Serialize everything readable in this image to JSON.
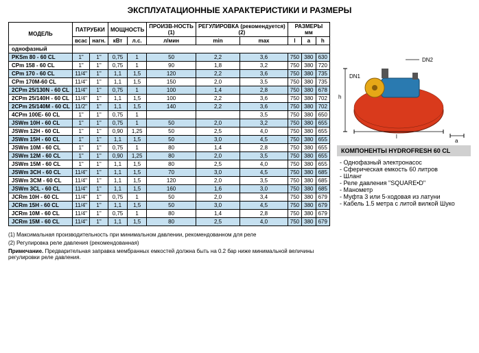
{
  "title": "ЭКСПЛУАТАЦИОННЫЕ ХАРАКТЕРИСТИКИ И РАЗМЕРЫ",
  "headers": {
    "model": "МОДЕЛЬ",
    "nozzles": "ПАТРУБКИ",
    "power": "МОЩНОСТЬ",
    "output": "ПРОИЗВ-НОСТЬ",
    "adjust": "РЕГУЛИРОВКА (рекомендуется)",
    "dims": "РАЗМЕРЫ",
    "phase": "однофазный",
    "suction": "всас",
    "delivery": "нагн.",
    "kw": "кВт",
    "hp": "л.с.",
    "lmin": "л/мин",
    "min": "min",
    "max": "max",
    "l": "l",
    "a": "a",
    "h": "h",
    "note1": "(1)",
    "note2": "(2)",
    "mm": "мм"
  },
  "rows": [
    {
      "m": "PKSm 80 - 60 CL",
      "s": "1\"",
      "d": "1\"",
      "kw": "0,75",
      "hp": "1",
      "lm": "50",
      "mn": "2,2",
      "mx": "3,6",
      "l": "750",
      "a": "380",
      "h": "630"
    },
    {
      "m": "CPm 158 - 60 CL",
      "s": "1\"",
      "d": "1\"",
      "kw": "0,75",
      "hp": "1",
      "lm": "90",
      "mn": "1,8",
      "mx": "3,2",
      "l": "750",
      "a": "380",
      "h": "720"
    },
    {
      "m": "CPm 170 - 60 CL",
      "s": "11/4\"",
      "d": "1\"",
      "kw": "1,1",
      "hp": "1,5",
      "lm": "120",
      "mn": "2,2",
      "mx": "3,6",
      "l": "750",
      "a": "380",
      "h": "735"
    },
    {
      "m": "CPm 170M-60 CL",
      "s": "11/4\"",
      "d": "1\"",
      "kw": "1,1",
      "hp": "1,5",
      "lm": "150",
      "mn": "2,0",
      "mx": "3,5",
      "l": "750",
      "a": "380",
      "h": "735"
    },
    {
      "m": "2CPm 25/130N - 60 CL",
      "s": "11/4\"",
      "d": "1\"",
      "kw": "0,75",
      "hp": "1",
      "lm": "100",
      "mn": "1,4",
      "mx": "2,8",
      "l": "750",
      "a": "380",
      "h": "678"
    },
    {
      "m": "2CPm 25/140H - 60 CL",
      "s": "11/4\"",
      "d": "1\"",
      "kw": "1,1",
      "hp": "1,5",
      "lm": "100",
      "mn": "2,2",
      "mx": "3,6",
      "l": "750",
      "a": "380",
      "h": "702"
    },
    {
      "m": "2CPm 25/140M - 60 CL",
      "s": "11/2\"",
      "d": "1\"",
      "kw": "1,1",
      "hp": "1,5",
      "lm": "140",
      "mn": "2,2",
      "mx": "3,6",
      "l": "750",
      "a": "380",
      "h": "702"
    },
    {
      "m": "4CPm 100E- 60 CL",
      "s": "1\"",
      "d": "1\"",
      "kw": "0,75",
      "hp": "1",
      "lm": "",
      "mn": "",
      "mx": "3,5",
      "l": "750",
      "a": "380",
      "h": "650"
    },
    {
      "m": "JSWm 10H - 60 CL",
      "s": "1\"",
      "d": "1\"",
      "kw": "0,75",
      "hp": "1",
      "lm": "50",
      "mn": "2,0",
      "mx": "3,2",
      "l": "750",
      "a": "380",
      "h": "655"
    },
    {
      "m": "JSWm 12H - 60 CL",
      "s": "1\"",
      "d": "1\"",
      "kw": "0,90",
      "hp": "1,25",
      "lm": "50",
      "mn": "2,5",
      "mx": "4,0",
      "l": "750",
      "a": "380",
      "h": "655"
    },
    {
      "m": "JSWm 15H - 60 CL",
      "s": "1\"",
      "d": "1\"",
      "kw": "1,1",
      "hp": "1,5",
      "lm": "50",
      "mn": "3,0",
      "mx": "4,5",
      "l": "750",
      "a": "380",
      "h": "655"
    },
    {
      "m": "JSWm 10M - 60 CL",
      "s": "1\"",
      "d": "1\"",
      "kw": "0,75",
      "hp": "1",
      "lm": "80",
      "mn": "1,4",
      "mx": "2,8",
      "l": "750",
      "a": "380",
      "h": "655"
    },
    {
      "m": "JSWm 12M - 60 CL",
      "s": "1\"",
      "d": "1\"",
      "kw": "0,90",
      "hp": "1,25",
      "lm": "80",
      "mn": "2,0",
      "mx": "3,5",
      "l": "750",
      "a": "380",
      "h": "655"
    },
    {
      "m": "JSWm 15M - 60 CL",
      "s": "1\"",
      "d": "1\"",
      "kw": "1,1",
      "hp": "1,5",
      "lm": "80",
      "mn": "2,5",
      "mx": "4,0",
      "l": "750",
      "a": "380",
      "h": "655"
    },
    {
      "m": "JSWm 3CH - 60 CL",
      "s": "11/4\"",
      "d": "1\"",
      "kw": "1,1",
      "hp": "1,5",
      "lm": "70",
      "mn": "3,0",
      "mx": "4,5",
      "l": "750",
      "a": "380",
      "h": "685"
    },
    {
      "m": "JSWm 3CM - 60 CL",
      "s": "11/4\"",
      "d": "1\"",
      "kw": "1,1",
      "hp": "1,5",
      "lm": "120",
      "mn": "2,0",
      "mx": "3,5",
      "l": "750",
      "a": "380",
      "h": "685"
    },
    {
      "m": "JSWm 3CL - 60 CL",
      "s": "11/4\"",
      "d": "1\"",
      "kw": "1,1",
      "hp": "1,5",
      "lm": "160",
      "mn": "1,6",
      "mx": "3,0",
      "l": "750",
      "a": "380",
      "h": "685"
    },
    {
      "m": "JCRm 10H - 60 CL",
      "s": "11/4\"",
      "d": "1\"",
      "kw": "0,75",
      "hp": "1",
      "lm": "50",
      "mn": "2,0",
      "mx": "3,4",
      "l": "750",
      "a": "380",
      "h": "679"
    },
    {
      "m": "JCRm 15H - 60 CL",
      "s": "11/4\"",
      "d": "1\"",
      "kw": "1,1",
      "hp": "1,5",
      "lm": "50",
      "mn": "3,0",
      "mx": "4,5",
      "l": "750",
      "a": "380",
      "h": "679"
    },
    {
      "m": "JCRm 10M - 60 CL",
      "s": "11/4\"",
      "d": "1\"",
      "kw": "0,75",
      "hp": "1",
      "lm": "80",
      "mn": "1,4",
      "mx": "2,8",
      "l": "750",
      "a": "380",
      "h": "679"
    },
    {
      "m": "JCRm 15M - 60 CL",
      "s": "11/4\"",
      "d": "1\"",
      "kw": "1,1",
      "hp": "1,5",
      "lm": "80",
      "mn": "2,5",
      "mx": "4,0",
      "l": "750",
      "a": "380",
      "h": "679"
    }
  ],
  "band_indices": [
    0,
    2,
    4,
    6,
    8,
    10,
    12,
    14,
    16,
    18,
    20
  ],
  "components_title": "КОМПОНЕНТЫ HYDROFRESH 60 CL",
  "components": [
    "Однофазный электронасос",
    "Сферическая емкость 60 литров",
    "Шланг",
    "Реле давления \"SQUARE•D\"",
    "Манометр",
    "Муфта 3 или 5-ходовая из латуни",
    "Кабель 1.5 метра с литой вилкой Шуко"
  ],
  "footnote1": "(1) Максимальная производительность при минимальном давлении, рекомендованном для реле",
  "footnote2": "(2) Регулировка реле давления (рекомендованная)",
  "note_label": "Примечание.",
  "note_text": "Предварительная заправка мембранных емкостей должна быть на 0.2 бар ниже минимальной величины регулировки реле давления.",
  "diagram": {
    "dn1": "DN1",
    "dn2": "DN2",
    "h": "h",
    "l": "l",
    "a": "a",
    "tank_color": "#d93a1c",
    "pump_body_color": "#2a7ab0",
    "pump_front_color": "#e6a817"
  }
}
